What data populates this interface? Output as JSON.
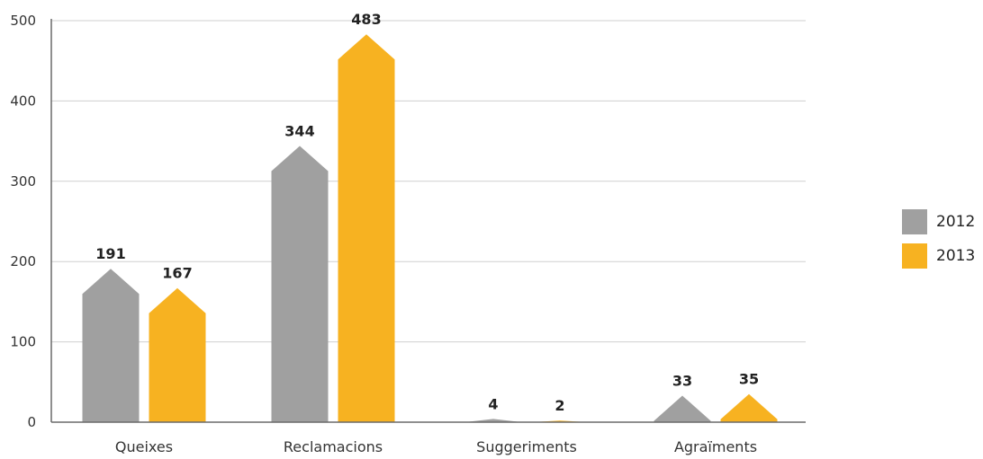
{
  "chart_data": {
    "type": "bar",
    "categories": [
      "Queixes",
      "Reclamacions",
      "Suggeriments",
      "Agraïments"
    ],
    "series": [
      {
        "name": "2012",
        "values": [
          191,
          344,
          4,
          33
        ],
        "color": "#a0a0a0"
      },
      {
        "name": "2013",
        "values": [
          167,
          483,
          2,
          35
        ],
        "color": "#f7b221"
      }
    ],
    "ylim": [
      0,
      500
    ],
    "yticks": [
      0,
      100,
      200,
      300,
      400,
      500
    ],
    "grid": true,
    "legend_position": "right"
  }
}
